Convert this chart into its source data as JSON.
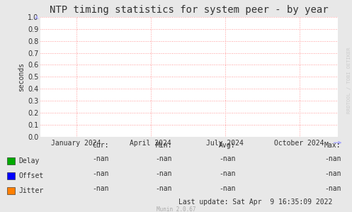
{
  "title": "NTP timing statistics for system peer - by year",
  "ylabel": "seconds",
  "bg_color": "#e8e8e8",
  "plot_bg_color": "#ffffff",
  "grid_color": "#ff9999",
  "ylim": [
    0.0,
    1.0
  ],
  "yticks": [
    0.0,
    0.1,
    0.2,
    0.3,
    0.4,
    0.5,
    0.6,
    0.7,
    0.8,
    0.9,
    1.0
  ],
  "xtick_labels": [
    "January 2024",
    "April 2024",
    "July 2024",
    "October 2024"
  ],
  "xtick_positions": [
    0.12,
    0.37,
    0.62,
    0.87
  ],
  "legend_entries": [
    {
      "label": "Delay",
      "color": "#00aa00"
    },
    {
      "label": "Offset",
      "color": "#0000ff"
    },
    {
      "label": "Jitter",
      "color": "#ff7f00"
    }
  ],
  "stats_headers": [
    "Cur:",
    "Min:",
    "Avg:",
    "Max:"
  ],
  "stats_values": [
    [
      "-nan",
      "-nan",
      "-nan",
      "-nan"
    ],
    [
      "-nan",
      "-nan",
      "-nan",
      "-nan"
    ],
    [
      "-nan",
      "-nan",
      "-nan",
      "-nan"
    ]
  ],
  "last_update": "Last update: Sat Apr  9 16:35:09 2022",
  "munin_version": "Munin 2.0.67",
  "watermark": "RRDTOOL / TOBI OETIKER",
  "title_fontsize": 10,
  "axis_fontsize": 7,
  "legend_fontsize": 7,
  "stats_fontsize": 7,
  "watermark_fontsize": 5,
  "arrow_color": "#aaaaff",
  "text_color": "#333333",
  "munin_color": "#aaaaaa"
}
